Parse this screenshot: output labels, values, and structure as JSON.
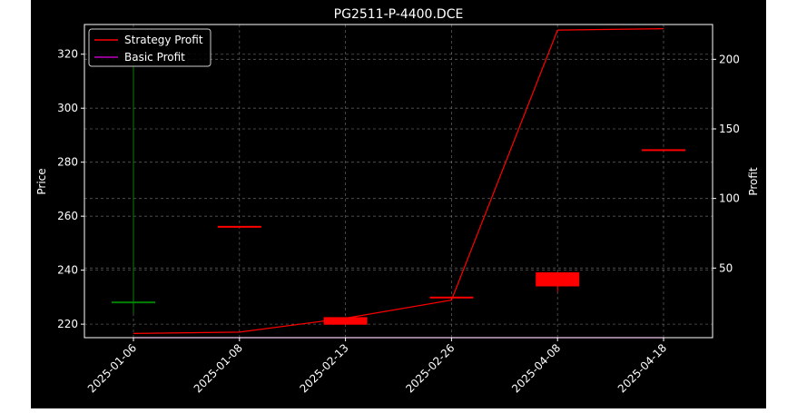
{
  "chart_data": {
    "type": "candlestick+line",
    "title": "PG2511-P-4400.DCE",
    "categories": [
      "2025-01-06",
      "2025-01-08",
      "2025-02-13",
      "2025-02-26",
      "2025-04-08",
      "2025-04-18"
    ],
    "price_axis": {
      "label": "Price",
      "ylim": [
        215,
        331
      ],
      "ticks": [
        220,
        240,
        260,
        280,
        300,
        320
      ]
    },
    "profit_axis": {
      "label": "Profit",
      "ylim": [
        0,
        225
      ],
      "ticks": [
        50,
        100,
        150,
        200
      ]
    },
    "candles": [
      {
        "date": "2025-01-06",
        "open": 228,
        "close": 228.4,
        "high": 319,
        "low": 224,
        "color": "#008000"
      },
      {
        "date": "2025-01-08",
        "open": 256.4,
        "close": 256,
        "high": 256.4,
        "low": 256,
        "color": "#ff0000"
      },
      {
        "date": "2025-02-13",
        "open": 222.6,
        "close": 219.8,
        "high": 222.6,
        "low": 219.8,
        "color": "#ff0000"
      },
      {
        "date": "2025-02-26",
        "open": 230.2,
        "close": 229.8,
        "high": 230.2,
        "low": 229.8,
        "color": "#ff0000"
      },
      {
        "date": "2025-04-08",
        "open": 239.2,
        "close": 234,
        "high": 239.2,
        "low": 232,
        "color": "#ff0000"
      },
      {
        "date": "2025-04-18",
        "open": 284.8,
        "close": 284.4,
        "high": 284.8,
        "low": 284.4,
        "color": "#ff0000"
      }
    ],
    "series": [
      {
        "name": "Strategy Profit",
        "color": "#ff0000",
        "values": [
          3,
          4,
          14,
          27,
          221,
          222
        ]
      },
      {
        "name": "Basic Profit",
        "color": "#bf00bf",
        "values": [
          0,
          0,
          0,
          0,
          0,
          0
        ]
      }
    ],
    "legend": "top-left",
    "grid": true
  }
}
